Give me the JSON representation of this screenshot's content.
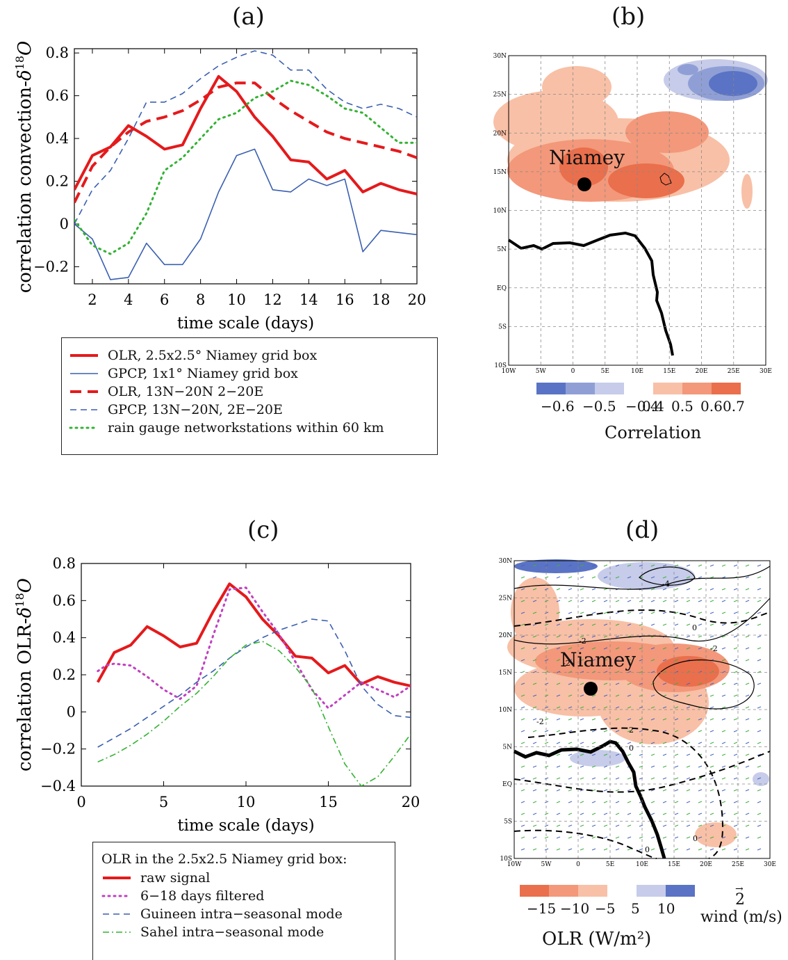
{
  "panels": {
    "a": {
      "label": "(a)"
    },
    "b": {
      "label": "(b)"
    },
    "c": {
      "label": "(c)"
    },
    "d": {
      "label": "(d)"
    }
  },
  "chart_data": [
    {
      "id": "a",
      "type": "line",
      "ylabel": "correlation convection-δ18O",
      "xlabel": "time scale (days)",
      "xlim": [
        1,
        20
      ],
      "ylim": [
        -0.28,
        0.82
      ],
      "xticks": [
        2,
        4,
        6,
        8,
        10,
        12,
        14,
        16,
        18,
        20
      ],
      "yticks": [
        -0.2,
        0,
        0.2,
        0.4,
        0.6,
        0.8
      ],
      "ytick_labels": [
        "−0.2",
        "0",
        "0.2",
        "0.4",
        "0.6",
        "0.8"
      ],
      "series": [
        {
          "name": "OLR, 2.5x2.5° Niamey grid box",
          "color": "#e41a1c",
          "style": "solid-thick",
          "x": [
            1,
            2,
            3,
            4,
            5,
            6,
            7,
            8,
            9,
            10,
            11,
            12,
            13,
            14,
            15,
            16,
            17,
            18,
            19,
            20
          ],
          "y": [
            0.16,
            0.32,
            0.36,
            0.46,
            0.41,
            0.35,
            0.37,
            0.54,
            0.69,
            0.62,
            0.5,
            0.41,
            0.3,
            0.29,
            0.21,
            0.25,
            0.15,
            0.19,
            0.16,
            0.14
          ]
        },
        {
          "name": " GPCP, 1x1° Niamey grid box",
          "color": "#3a5fb0",
          "style": "solid-thin",
          "x": [
            1,
            2,
            3,
            4,
            5,
            6,
            7,
            8,
            9,
            10,
            11,
            12,
            13,
            14,
            15,
            16,
            17,
            18,
            19,
            20
          ],
          "y": [
            0.0,
            -0.07,
            -0.26,
            -0.25,
            -0.09,
            -0.19,
            -0.19,
            -0.07,
            0.15,
            0.32,
            0.35,
            0.16,
            0.15,
            0.21,
            0.18,
            0.21,
            -0.13,
            -0.03,
            -0.04,
            -0.05
          ]
        },
        {
          "name": "OLR, 13N−20N 2−20E",
          "color": "#e41a1c",
          "style": "dashed-thick",
          "x": [
            1,
            2,
            3,
            4,
            5,
            6,
            7,
            8,
            9,
            10,
            11,
            12,
            13,
            14,
            15,
            16,
            17,
            18,
            19,
            20
          ],
          "y": [
            0.1,
            0.27,
            0.36,
            0.43,
            0.48,
            0.5,
            0.53,
            0.58,
            0.64,
            0.66,
            0.66,
            0.59,
            0.53,
            0.48,
            0.43,
            0.4,
            0.38,
            0.36,
            0.34,
            0.31
          ]
        },
        {
          "name": "GPCP, 13N−20N, 2E−20E",
          "color": "#3a5fb0",
          "style": "dashed-thin",
          "x": [
            1,
            2,
            3,
            4,
            5,
            6,
            7,
            8,
            9,
            10,
            11,
            12,
            13,
            14,
            15,
            16,
            17,
            18,
            19,
            20
          ],
          "y": [
            0.0,
            0.16,
            0.25,
            0.4,
            0.57,
            0.57,
            0.61,
            0.68,
            0.74,
            0.78,
            0.81,
            0.79,
            0.72,
            0.72,
            0.63,
            0.57,
            0.54,
            0.56,
            0.54,
            0.5
          ]
        },
        {
          "name": " rain gauge networkstations within 60 km",
          "color": "#33b233",
          "style": "dotted",
          "x": [
            1,
            2,
            3,
            4,
            5,
            6,
            7,
            8,
            9,
            10,
            11,
            12,
            13,
            14,
            15,
            16,
            17,
            18,
            19,
            20
          ],
          "y": [
            0.02,
            -0.1,
            -0.14,
            -0.09,
            0.05,
            0.25,
            0.31,
            0.4,
            0.49,
            0.52,
            0.59,
            0.62,
            0.67,
            0.65,
            0.6,
            0.54,
            0.52,
            0.45,
            0.38,
            0.38
          ]
        }
      ]
    },
    {
      "id": "c",
      "type": "line",
      "ylabel": "correlation OLR-δ18O",
      "xlabel": "time scale (days)",
      "xlim": [
        0,
        20
      ],
      "ylim": [
        -0.4,
        0.8
      ],
      "xticks": [
        0,
        5,
        10,
        15,
        20
      ],
      "yticks": [
        -0.4,
        -0.2,
        0,
        0.2,
        0.4,
        0.6,
        0.8
      ],
      "ytick_labels": [
        "−0.4",
        "−0.2",
        "0",
        "0.2",
        "0.4",
        "0.6",
        "0.8"
      ],
      "legend_title": "OLR in the 2.5x2.5 Niamey grid box:",
      "series": [
        {
          "name": "raw signal",
          "color": "#e41a1c",
          "style": "solid-thick",
          "x": [
            1,
            2,
            3,
            4,
            5,
            6,
            7,
            8,
            9,
            10,
            11,
            12,
            13,
            14,
            15,
            16,
            17,
            18,
            19,
            20
          ],
          "y": [
            0.16,
            0.32,
            0.36,
            0.46,
            0.41,
            0.35,
            0.37,
            0.54,
            0.69,
            0.62,
            0.5,
            0.41,
            0.3,
            0.29,
            0.21,
            0.25,
            0.15,
            0.19,
            0.16,
            0.14
          ]
        },
        {
          "name": "6−18 days filtered",
          "color": "#c040c0",
          "style": "dotted",
          "x": [
            1,
            1.5,
            2,
            3,
            4,
            5,
            6,
            7,
            8,
            9,
            10,
            11,
            12,
            13,
            14,
            15,
            16,
            17,
            18,
            19,
            20
          ],
          "y": [
            0.22,
            0.25,
            0.26,
            0.25,
            0.19,
            0.12,
            0.07,
            0.14,
            0.41,
            0.66,
            0.67,
            0.54,
            0.42,
            0.27,
            0.12,
            0.02,
            0.09,
            0.16,
            0.12,
            0.08,
            0.14
          ]
        },
        {
          "name": "Guineen intra−seasonal mode",
          "color": "#3a5fb0",
          "style": "dashed-thin",
          "x": [
            1,
            2,
            3,
            4,
            5,
            6,
            7,
            8,
            9,
            10,
            11,
            12,
            13,
            14,
            15,
            16,
            17,
            18,
            19,
            20
          ],
          "y": [
            -0.19,
            -0.14,
            -0.09,
            -0.03,
            0.03,
            0.09,
            0.16,
            0.22,
            0.29,
            0.35,
            0.4,
            0.44,
            0.47,
            0.5,
            0.49,
            0.33,
            0.14,
            0.04,
            -0.02,
            -0.03
          ]
        },
        {
          "name": "Sahel intra−seasonal mode",
          "color": "#33b233",
          "style": "dashdot",
          "x": [
            1,
            2,
            3,
            4,
            5,
            6,
            7,
            8,
            9,
            10,
            11,
            12,
            13,
            14,
            15,
            16,
            17,
            18,
            19,
            20
          ],
          "y": [
            -0.27,
            -0.23,
            -0.18,
            -0.12,
            -0.05,
            0.03,
            0.1,
            0.19,
            0.29,
            0.36,
            0.38,
            0.33,
            0.24,
            0.13,
            -0.08,
            -0.28,
            -0.4,
            -0.35,
            -0.24,
            -0.12
          ]
        }
      ]
    },
    {
      "id": "b",
      "type": "heatmap",
      "map_label": "Niamey",
      "lon_ticks": [
        "10W",
        "5W",
        "0",
        "5E",
        "10E",
        "15E",
        "20E",
        "25E",
        "30E"
      ],
      "lat_ticks": [
        "30N",
        "25N",
        "20N",
        "15N",
        "10N",
        "5N",
        "EQ",
        "5S",
        "10S"
      ],
      "colorbar_colors": [
        "#5a73c4",
        "#8f9fd6",
        "#c6cce9",
        "#ffffff",
        "#f8c0a6",
        "#f3987a",
        "#ea6f4c"
      ],
      "colorbar_labels": [
        "−0.6",
        "−0.5",
        "−0.4",
        "0.4",
        "0.5",
        "0.6",
        "0.7"
      ],
      "colorbar_title": "Correlation"
    },
    {
      "id": "d",
      "type": "heatmap",
      "map_label": "Niamey",
      "lon_ticks": [
        "10W",
        "5W",
        "0",
        "5E",
        "10E",
        "15E",
        "20E",
        "25E",
        "30E"
      ],
      "lat_ticks": [
        "30N",
        "25N",
        "20N",
        "15N",
        "10N",
        "5N",
        "EQ",
        "5S",
        "10S"
      ],
      "contour_labels": [
        "-4",
        "-2",
        "0",
        "-2",
        "-2",
        "2",
        "0",
        "0",
        "0",
        "-2"
      ],
      "colorbar_colors": [
        "#ea6f4c",
        "#f3987a",
        "#f8c0a6",
        "#ffffff",
        "#c6cce9",
        "#5a73c4"
      ],
      "colorbar_labels": [
        "−15",
        "−10",
        "−5",
        "5",
        "10"
      ],
      "colorbar_title": "OLR (W/m²)",
      "wind_scale_value": "2",
      "wind_scale_unit": "wind (m/s)"
    }
  ]
}
